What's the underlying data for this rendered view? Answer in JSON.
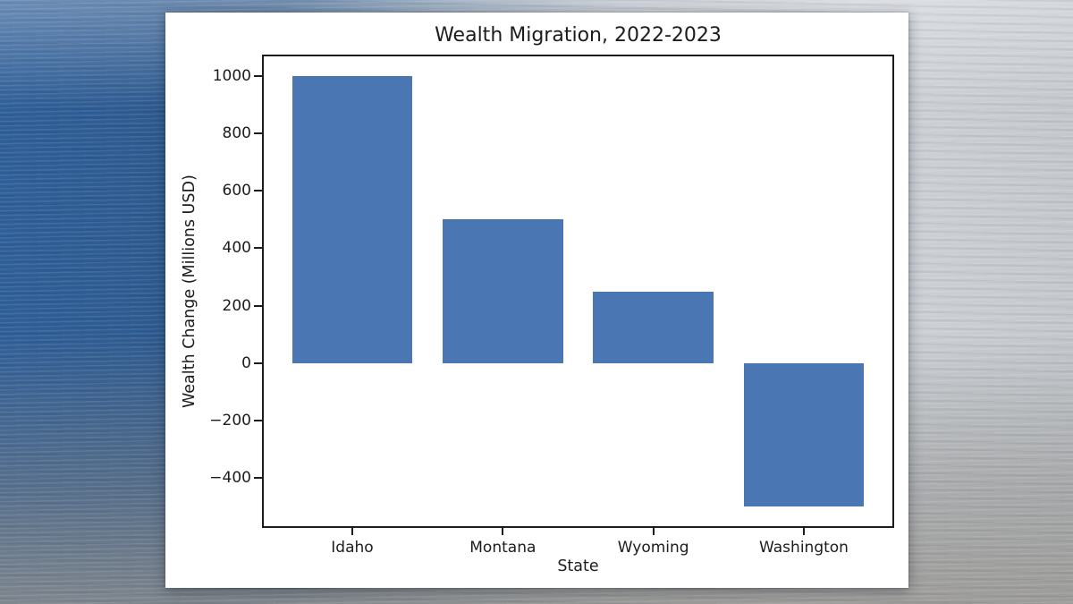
{
  "chart_data": {
    "type": "bar",
    "title": "Wealth Migration, 2022-2023",
    "xlabel": "State",
    "ylabel": "Wealth Change (Millions USD)",
    "categories": [
      "Idaho",
      "Montana",
      "Wyoming",
      "Washington"
    ],
    "values": [
      1000,
      500,
      250,
      -500
    ],
    "yticks": [
      -400,
      -200,
      0,
      200,
      400,
      600,
      800,
      1000
    ],
    "ylim": [
      -575,
      1075
    ],
    "xlim": [
      -0.6,
      3.6
    ],
    "bar_width": 0.8,
    "bar_color": "#4a77b4",
    "grid": false,
    "legend_position": "none",
    "plot_background": "#ffffff",
    "text_color": "#1c1c1c"
  }
}
